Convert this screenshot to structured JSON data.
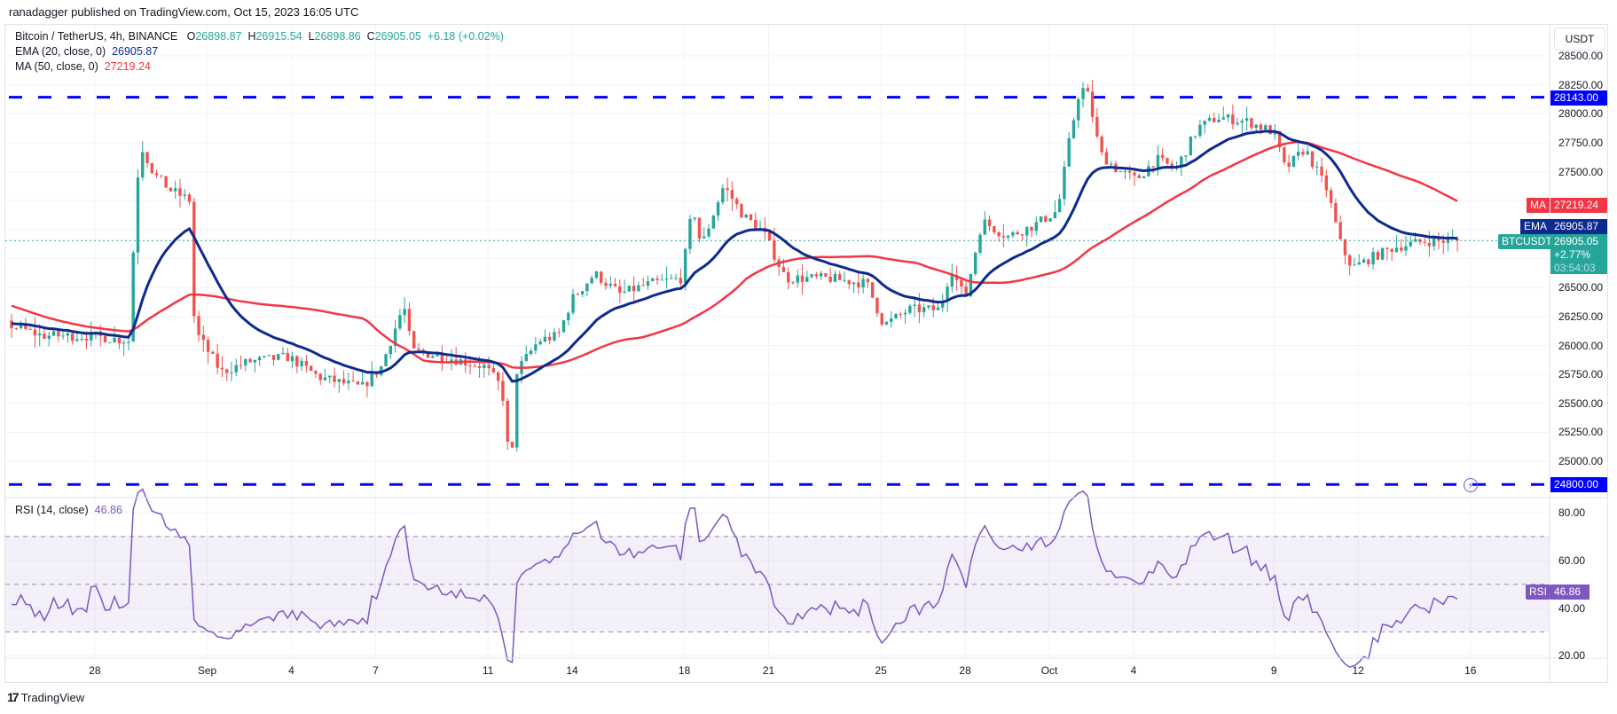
{
  "header": {
    "published": "ranadagger published on TradingView.com, Oct 15, 2023 16:05 UTC"
  },
  "legend": {
    "symbol": "Bitcoin / TetherUS, 4h, BINANCE",
    "o_label": "O",
    "open": "26898.87",
    "h_label": "H",
    "high": "26915.54",
    "l_label": "L",
    "low": "26898.86",
    "c_label": "C",
    "close": "26905.05",
    "change": "+6.18 (+0.02%)",
    "ema_label": "EMA (20, close, 0)",
    "ema_value": "26905.87",
    "ma_label": "MA (50, close, 0)",
    "ma_value": "27219.24",
    "rsi_label": "RSI (14, close)",
    "rsi_value": "46.86"
  },
  "price_axis": {
    "currency": "USDT",
    "ticks": [
      "28500.00",
      "28250.00",
      "28000.00",
      "27750.00",
      "27500.00",
      "26500.00",
      "26250.00",
      "26000.00",
      "25750.00",
      "25500.00",
      "25250.00",
      "25000.00"
    ],
    "tags": {
      "resistance": "28143.00",
      "support": "24800.00",
      "ma_tag": "MA",
      "ma": "27219.24",
      "ema_tag": "EMA",
      "ema": "26905.87",
      "symbol_tag": "BTCUSDT",
      "last": "26905.05",
      "last_change": "+2.77%",
      "countdown": "03:54:03"
    }
  },
  "rsi_axis": {
    "ticks": [
      "80.00",
      "60.00",
      "40.00",
      "20.00"
    ],
    "tag": "RSI",
    "value": "46.86"
  },
  "time_axis": {
    "ticks": [
      {
        "label": "28",
        "day": 3
      },
      {
        "label": "Sep",
        "day": 7
      },
      {
        "label": "4",
        "day": 10
      },
      {
        "label": "7",
        "day": 13
      },
      {
        "label": "11",
        "day": 17
      },
      {
        "label": "14",
        "day": 20
      },
      {
        "label": "18",
        "day": 24
      },
      {
        "label": "21",
        "day": 27
      },
      {
        "label": "25",
        "day": 31
      },
      {
        "label": "28",
        "day": 34
      },
      {
        "label": "Oct",
        "day": 37
      },
      {
        "label": "4",
        "day": 40
      },
      {
        "label": "9",
        "day": 45
      },
      {
        "label": "12",
        "day": 48
      },
      {
        "label": "16",
        "day": 52
      }
    ]
  },
  "footer": {
    "brand": "TradingView"
  },
  "colors": {
    "up": "#26a69a",
    "down": "#ef5350",
    "ema": "#0d2a8e",
    "ma": "#f23645",
    "rsi": "#7e57c2",
    "levels": "#0000ff"
  },
  "chart_data": {
    "type": "candlestick",
    "title": "Bitcoin / TetherUS, 4h, BINANCE",
    "start": "Aug 25 00:00",
    "interval_hours": 4,
    "x_unit": "days since Aug 25",
    "price_path": [
      [
        -8.3,
        26900
      ],
      [
        -4,
        26150
      ],
      [
        0,
        26175
      ],
      [
        1.1,
        26085
      ],
      [
        3,
        26080
      ],
      [
        4.2,
        26040
      ],
      [
        4.5,
        27430
      ],
      [
        4.7,
        27700
      ],
      [
        5.1,
        27480
      ],
      [
        5.7,
        27340
      ],
      [
        6.4,
        27250
      ],
      [
        6.55,
        26130
      ],
      [
        6.8,
        26040
      ],
      [
        7.5,
        25770
      ],
      [
        8.5,
        25860
      ],
      [
        9.9,
        25900
      ],
      [
        11,
        25725
      ],
      [
        12.5,
        25635
      ],
      [
        13.2,
        25815
      ],
      [
        14,
        26350
      ],
      [
        14.3,
        25950
      ],
      [
        15.4,
        25905
      ],
      [
        16.9,
        25815
      ],
      [
        17.5,
        25635
      ],
      [
        17.7,
        25140
      ],
      [
        17.85,
        25005
      ],
      [
        18,
        25770
      ],
      [
        18.8,
        26040
      ],
      [
        19.5,
        26085
      ],
      [
        20,
        26400
      ],
      [
        20.8,
        26620
      ],
      [
        21.7,
        26445
      ],
      [
        22.8,
        26535
      ],
      [
        23.9,
        26580
      ],
      [
        24.3,
        27210
      ],
      [
        24.6,
        26850
      ],
      [
        25.4,
        27380
      ],
      [
        26.1,
        27120
      ],
      [
        26.8,
        26985
      ],
      [
        27.6,
        26580
      ],
      [
        29.1,
        26580
      ],
      [
        30.5,
        26535
      ],
      [
        31.1,
        26175
      ],
      [
        32,
        26310
      ],
      [
        33.1,
        26310
      ],
      [
        33.5,
        26670
      ],
      [
        34,
        26400
      ],
      [
        34.6,
        27075
      ],
      [
        35.5,
        26940
      ],
      [
        36.4,
        27030
      ],
      [
        37.3,
        27165
      ],
      [
        37.7,
        27750
      ],
      [
        38.1,
        28240
      ],
      [
        38.4,
        28150
      ],
      [
        38.8,
        27660
      ],
      [
        39.4,
        27520
      ],
      [
        40.1,
        27430
      ],
      [
        40.8,
        27610
      ],
      [
        41.5,
        27520
      ],
      [
        42.3,
        27880
      ],
      [
        43,
        27970
      ],
      [
        44.1,
        27930
      ],
      [
        45,
        27840
      ],
      [
        45.4,
        27520
      ],
      [
        46.1,
        27700
      ],
      [
        46.9,
        27340
      ],
      [
        47.4,
        26850
      ],
      [
        47.8,
        26670
      ],
      [
        48.5,
        26760
      ],
      [
        49.3,
        26850
      ],
      [
        50.4,
        26900
      ],
      [
        51.67,
        26905.05
      ]
    ],
    "horizontal_levels": [
      28143,
      24800
    ],
    "last_close": 26905.05,
    "ylim": [
      24700,
      28650
    ],
    "rsi": {
      "period": 14,
      "last": 46.86,
      "band": [
        30,
        70
      ],
      "ylim": [
        15,
        90
      ]
    },
    "ema_period": 20,
    "ma_period": 50
  }
}
